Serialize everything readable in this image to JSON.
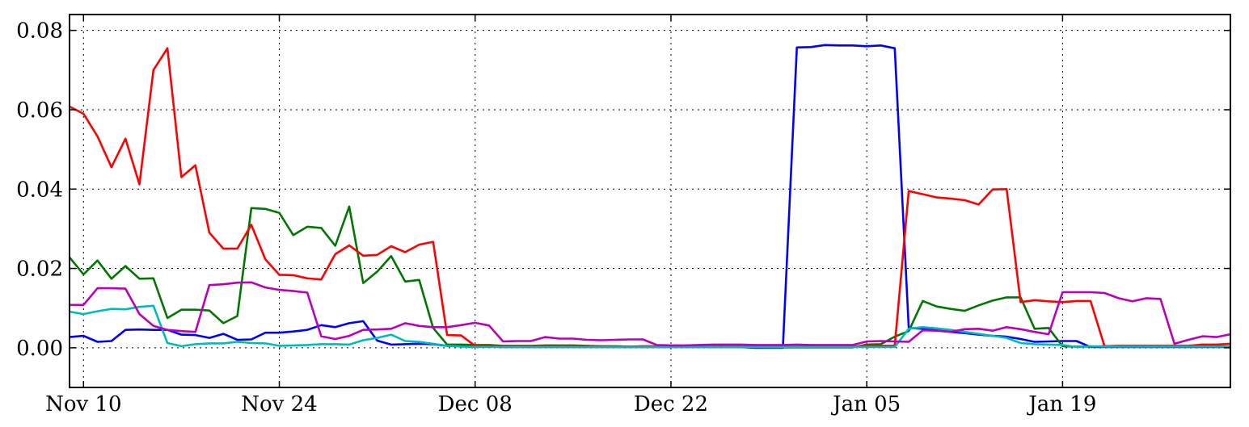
{
  "chart_data": {
    "type": "line",
    "title": "",
    "xlabel": "",
    "ylabel": "",
    "x_start": "2013-11-09",
    "x_step_days": 1,
    "xlim": [
      "2013-11-09",
      "2014-01-31"
    ],
    "ylim": [
      -0.01,
      0.084
    ],
    "grid": true,
    "x_ticks": [
      {
        "date": "2013-11-10",
        "label": "Nov 10"
      },
      {
        "date": "2013-11-24",
        "label": "Nov 24"
      },
      {
        "date": "2013-12-08",
        "label": "Dec 08"
      },
      {
        "date": "2013-12-22",
        "label": "Dec 22"
      },
      {
        "date": "2014-01-05",
        "label": "Jan 05"
      },
      {
        "date": "2014-01-19",
        "label": "Jan 19"
      }
    ],
    "y_ticks": [
      {
        "value": 0.0,
        "label": "0.00"
      },
      {
        "value": 0.02,
        "label": "0.02"
      },
      {
        "value": 0.04,
        "label": "0.04"
      },
      {
        "value": 0.06,
        "label": "0.06"
      },
      {
        "value": 0.08,
        "label": "0.08"
      }
    ],
    "series": [
      {
        "color": "#0000ff",
        "values": [
          0.0027,
          0.003,
          0.0015,
          0.0017,
          0.0045,
          0.0046,
          0.0045,
          0.0045,
          0.0033,
          0.0032,
          0.0025,
          0.0035,
          0.002,
          0.0021,
          0.0038,
          0.0038,
          0.0041,
          0.0045,
          0.0057,
          0.0052,
          0.0062,
          0.0067,
          0.0018,
          0.0008,
          0.0009,
          0.001,
          0.0009,
          0.0005,
          0.0004,
          0.0003,
          0.0003,
          0.0002,
          0.0002,
          0.0002,
          0.0002,
          0.0002,
          0.0002,
          0.0002,
          0.0002,
          0.0002,
          0.0002,
          0.0002,
          0.0002,
          0.0002,
          0.0002,
          0.0002,
          0.0002,
          0.0002,
          0.0002,
          0.0,
          0.0,
          0.0,
          0.0757,
          0.0758,
          0.0763,
          0.0762,
          0.0762,
          0.076,
          0.0762,
          0.0755,
          0.005,
          0.0048,
          0.0045,
          0.004,
          0.0037,
          0.0033,
          0.003,
          0.0028,
          0.0022,
          0.0015,
          0.0016,
          0.0017,
          0.0017,
          0.0002,
          0.0002,
          0.0002,
          0.0002,
          0.0002,
          0.0002,
          0.0002,
          0.0002,
          0.0002,
          0.0002,
          0.0002
        ]
      },
      {
        "color": "#007700",
        "values": [
          0.0228,
          0.0185,
          0.022,
          0.0174,
          0.0206,
          0.0174,
          0.0175,
          0.0075,
          0.0096,
          0.0096,
          0.0094,
          0.0062,
          0.008,
          0.0352,
          0.035,
          0.034,
          0.0284,
          0.0305,
          0.0302,
          0.0257,
          0.0356,
          0.0163,
          0.0192,
          0.0231,
          0.0167,
          0.0171,
          0.005,
          0.0008,
          0.0008,
          0.0007,
          0.0007,
          0.0005,
          0.0005,
          0.0005,
          0.0006,
          0.0006,
          0.0006,
          0.0005,
          0.0004,
          0.0004,
          0.0003,
          0.0003,
          0.0003,
          0.0003,
          0.0003,
          0.0003,
          0.0002,
          0.0002,
          0.0002,
          0.0002,
          0.0001,
          0.0001,
          0.0001,
          0.0001,
          0.0001,
          0.0001,
          0.0001,
          0.0008,
          0.0009,
          0.0028,
          0.0042,
          0.0118,
          0.0104,
          0.0098,
          0.0093,
          0.0107,
          0.0119,
          0.0127,
          0.0127,
          0.0048,
          0.005,
          0.0004,
          0.0003,
          0.0003,
          0.0004,
          0.0004,
          0.0004,
          0.0004,
          0.0004,
          0.0004,
          0.0004,
          0.0004,
          0.0004,
          0.0003
        ]
      },
      {
        "color": "#ff0000",
        "values": [
          0.0608,
          0.059,
          0.0533,
          0.0455,
          0.0527,
          0.0412,
          0.07,
          0.0755,
          0.043,
          0.046,
          0.029,
          0.025,
          0.025,
          0.031,
          0.0223,
          0.0184,
          0.0183,
          0.0175,
          0.0172,
          0.0236,
          0.0258,
          0.0232,
          0.0234,
          0.0256,
          0.0241,
          0.026,
          0.0267,
          0.0032,
          0.0031,
          0.0005,
          0.0004,
          0.0004,
          0.0004,
          0.0004,
          0.0004,
          0.0004,
          0.0004,
          0.0004,
          0.0004,
          0.0003,
          0.0003,
          0.0004,
          0.0004,
          0.0005,
          0.0004,
          0.0005,
          0.0004,
          0.0004,
          0.0004,
          0.0003,
          0.0003,
          0.0003,
          0.0003,
          0.0003,
          0.0004,
          0.0003,
          0.0003,
          0.0005,
          0.0005,
          0.0005,
          0.0395,
          0.0387,
          0.0379,
          0.0376,
          0.0372,
          0.0361,
          0.0399,
          0.04,
          0.0115,
          0.012,
          0.0117,
          0.0115,
          0.0118,
          0.0118,
          0.0004,
          0.0005,
          0.0005,
          0.0005,
          0.0005,
          0.0005,
          0.0005,
          0.0008,
          0.0008,
          0.001
        ]
      },
      {
        "color": "#00bbbb",
        "values": [
          0.0091,
          0.0085,
          0.0092,
          0.0098,
          0.0097,
          0.0103,
          0.0106,
          0.0012,
          0.0004,
          0.0009,
          0.0011,
          0.0011,
          0.0015,
          0.0012,
          0.0011,
          0.0005,
          0.0006,
          0.0007,
          0.0009,
          0.0009,
          0.0008,
          0.0019,
          0.0025,
          0.0033,
          0.0017,
          0.0015,
          0.001,
          0.0005,
          0.0003,
          0.0002,
          0.0002,
          0.0002,
          0.0002,
          0.0002,
          0.0002,
          0.0002,
          0.0002,
          0.0002,
          0.0002,
          0.0002,
          0.0002,
          0.0002,
          0.0002,
          0.0002,
          0.0002,
          0.0002,
          0.0002,
          0.0002,
          0.0002,
          0.0002,
          0.0002,
          0.0002,
          0.0002,
          0.0002,
          0.0002,
          0.0002,
          0.0002,
          0.0002,
          0.0002,
          0.0002,
          0.0048,
          0.0052,
          0.0049,
          0.0045,
          0.004,
          0.0035,
          0.003,
          0.0025,
          0.0012,
          0.0009,
          0.0008,
          0.0007,
          0.0002,
          0.0004,
          0.0003,
          0.0003,
          0.0003,
          0.0003,
          0.0003,
          0.0003,
          0.0003,
          0.0003,
          0.0003,
          0.0003
        ]
      },
      {
        "color": "#bb00bb",
        "values": [
          0.0108,
          0.0108,
          0.015,
          0.015,
          0.0149,
          0.0085,
          0.0055,
          0.0045,
          0.0042,
          0.004,
          0.0158,
          0.016,
          0.0164,
          0.0165,
          0.0152,
          0.0146,
          0.0143,
          0.0139,
          0.0029,
          0.0022,
          0.003,
          0.0045,
          0.0046,
          0.0048,
          0.0062,
          0.0055,
          0.0052,
          0.0052,
          0.0057,
          0.0063,
          0.0056,
          0.0016,
          0.0017,
          0.0017,
          0.0027,
          0.0023,
          0.0023,
          0.002,
          0.0019,
          0.002,
          0.0021,
          0.0021,
          0.0007,
          0.0006,
          0.0006,
          0.0007,
          0.0008,
          0.0008,
          0.0008,
          0.0007,
          0.0007,
          0.0007,
          0.0008,
          0.0007,
          0.0007,
          0.0007,
          0.0007,
          0.0016,
          0.0017,
          0.0016,
          0.0015,
          0.0044,
          0.0043,
          0.004,
          0.0047,
          0.0048,
          0.0043,
          0.0052,
          0.0047,
          0.004,
          0.0034,
          0.014,
          0.014,
          0.014,
          0.0138,
          0.0125,
          0.0117,
          0.0125,
          0.0123,
          0.001,
          0.002,
          0.0029,
          0.0027,
          0.0034
        ]
      }
    ]
  }
}
